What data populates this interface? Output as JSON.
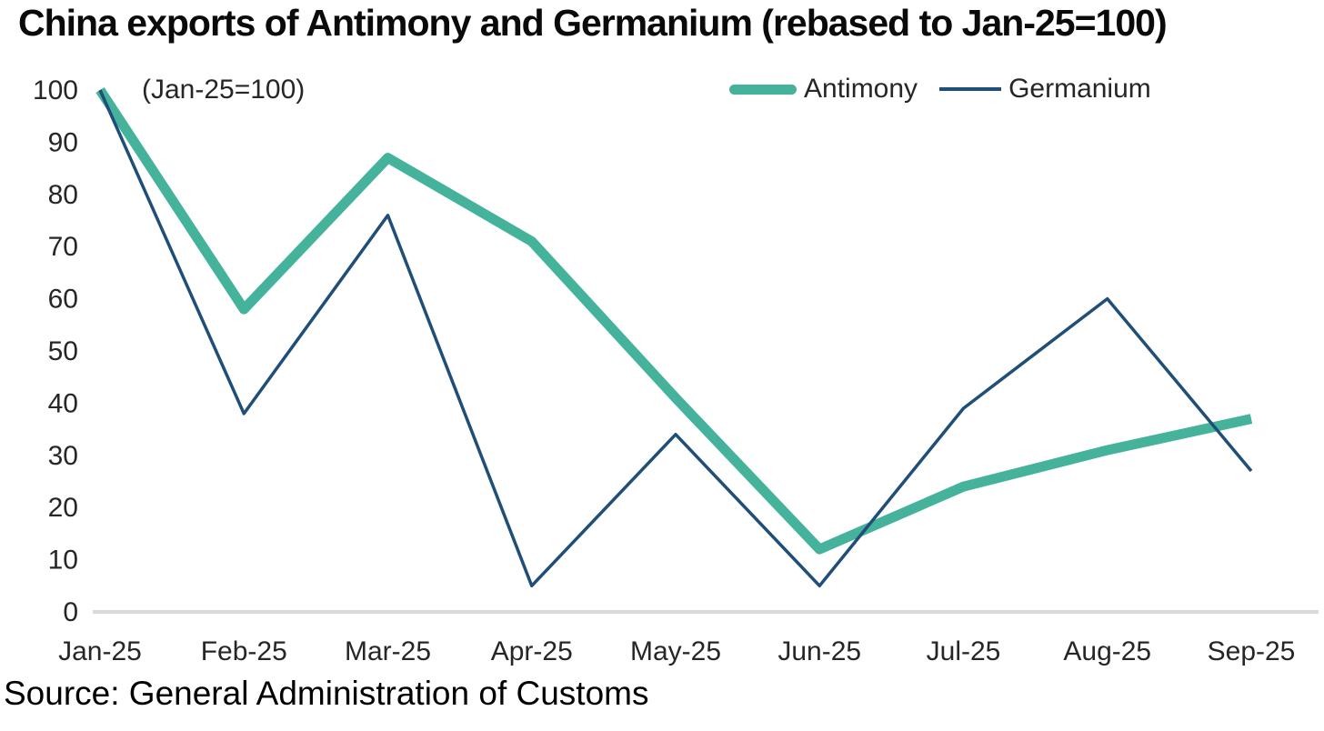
{
  "title": "China exports of Antimony and Germanium (rebased to Jan-25=100)",
  "annotation": "(Jan-25=100)",
  "source": "Source: General Administration of Customs",
  "colors": {
    "antimony": "#45b29b",
    "germanium": "#1f4e79",
    "axis_line": "#d9d9d9",
    "tick_text": "#262626",
    "title_text": "#0a0a0a"
  },
  "legend": [
    {
      "label": "Antimony",
      "color": "#45b29b",
      "style": "thick"
    },
    {
      "label": "Germanium",
      "color": "#1f4e79",
      "style": "thin"
    }
  ],
  "chart_data": {
    "type": "line",
    "title": "China exports of Antimony and Germanium (rebased to Jan-25=100)",
    "categories": [
      "Jan-25",
      "Feb-25",
      "Mar-25",
      "Apr-25",
      "May-25",
      "Jun-25",
      "Jul-25",
      "Aug-25",
      "Sep-25"
    ],
    "series": [
      {
        "name": "Antimony",
        "color": "#45b29b",
        "stroke_width": 11,
        "values": [
          100,
          58,
          87,
          71,
          41,
          12,
          24,
          31,
          37
        ]
      },
      {
        "name": "Germanium",
        "color": "#1f4e79",
        "stroke_width": 3.5,
        "values": [
          100,
          38,
          76,
          5,
          34,
          5,
          39,
          60,
          27
        ]
      }
    ],
    "xlabel": "",
    "ylabel": "",
    "ylim": [
      0,
      100
    ],
    "yticks": [
      0,
      10,
      20,
      30,
      40,
      50,
      60,
      70,
      80,
      90,
      100
    ],
    "grid": false,
    "legend_position": "top-right",
    "baseline_only": true
  }
}
